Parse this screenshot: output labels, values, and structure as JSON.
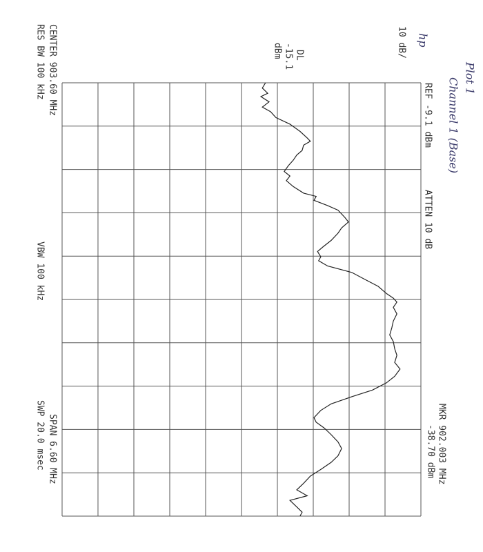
{
  "chart_data": {
    "type": "line",
    "title": "Plot 1",
    "subtitle": "Channel 1 (Base)",
    "brand": "hp",
    "scale_label": "10 dB/",
    "ref_label": "REF -9.1 dBm",
    "atten_label": "ATTEN 10 dB",
    "marker_freq_label": "MKR 902.003 MHz",
    "marker_level_label": "-38.70 dBm",
    "display_line": [
      "DL",
      "-15.1",
      "dBm"
    ],
    "center_label": "CENTER 903.60 MHz",
    "span_label": "SPAN 6.60 MHz",
    "rbw_label": "RES BW 100 kHz",
    "vbw_label": "VBW 100 kHz",
    "sweep_label": "SWP 20.0 msec",
    "xlim": [
      900.3,
      906.9
    ],
    "ylim": [
      -109.1,
      -9.1
    ],
    "grid": true,
    "color": "#222222",
    "series": [
      {
        "x": [
          900.3,
          900.38,
          900.46,
          900.51,
          900.59,
          900.67,
          900.74,
          900.83,
          900.93,
          901.04,
          901.14,
          901.19,
          901.25,
          901.33,
          901.4,
          901.48,
          901.56,
          901.65,
          901.72,
          901.79,
          901.88,
          901.98,
          902.03,
          902.09,
          902.17,
          902.24,
          902.35,
          902.42,
          902.51,
          902.59,
          902.7,
          902.8,
          902.87,
          902.95,
          903.01,
          903.09,
          903.19,
          903.3,
          903.4,
          903.51,
          903.58,
          903.64,
          903.72,
          903.82,
          903.93,
          904.03,
          904.14,
          904.24,
          904.35,
          904.45,
          904.56,
          904.66,
          904.77,
          904.87,
          904.98,
          905.08,
          905.19,
          905.29,
          905.4,
          905.47,
          905.56,
          905.66,
          905.77,
          905.87,
          905.98,
          906.08,
          906.19,
          906.29,
          906.4,
          906.5,
          906.59,
          906.66,
          906.76,
          906.84,
          906.9
        ],
        "values": [
          -52.4,
          -53.3,
          -51.8,
          -53.7,
          -51.4,
          -53.3,
          -51.0,
          -49.5,
          -45.6,
          -42.8,
          -40.8,
          -39.9,
          -41.8,
          -42.2,
          -43.7,
          -44.7,
          -46.0,
          -47.2,
          -45.6,
          -46.6,
          -44.7,
          -41.8,
          -38.3,
          -38.9,
          -35.1,
          -32.2,
          -30.3,
          -29.3,
          -31.2,
          -32.2,
          -34.1,
          -36.4,
          -37.9,
          -37.0,
          -37.6,
          -35.1,
          -28.3,
          -24.5,
          -21.0,
          -18.7,
          -16.8,
          -15.8,
          -16.8,
          -15.8,
          -16.8,
          -17.2,
          -17.8,
          -16.8,
          -16.4,
          -15.8,
          -16.4,
          -14.9,
          -16.4,
          -18.7,
          -22.6,
          -28.3,
          -34.1,
          -37.0,
          -38.9,
          -38.3,
          -36.0,
          -34.1,
          -32.2,
          -31.2,
          -32.2,
          -34.1,
          -37.0,
          -39.9,
          -41.8,
          -43.7,
          -40.8,
          -45.6,
          -43.7,
          -42.2,
          -42.8
        ]
      }
    ]
  }
}
